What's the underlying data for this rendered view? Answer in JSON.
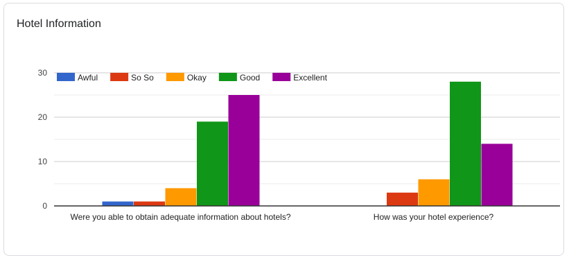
{
  "card": {
    "title": "Hotel Information"
  },
  "chart_data": {
    "type": "bar",
    "title": "Hotel Information",
    "xlabel": "",
    "ylabel": "",
    "ylim": [
      0,
      30
    ],
    "yticks": [
      0,
      10,
      20,
      30
    ],
    "grid": true,
    "legend_position": "top-left",
    "categories": [
      "Were you able to obtain adequate information about hotels?",
      "How was your hotel experience?"
    ],
    "series": [
      {
        "name": "Awful",
        "color": "#3366cc",
        "values": [
          1,
          0
        ]
      },
      {
        "name": "So So",
        "color": "#dc3912",
        "values": [
          1,
          3
        ]
      },
      {
        "name": "Okay",
        "color": "#ff9900",
        "values": [
          4,
          6
        ]
      },
      {
        "name": "Good",
        "color": "#109618",
        "values": [
          19,
          28
        ]
      },
      {
        "name": "Excellent",
        "color": "#990099",
        "values": [
          25,
          14
        ]
      }
    ]
  }
}
